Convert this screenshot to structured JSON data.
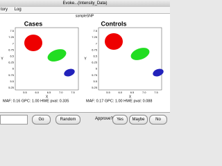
{
  "window": {
    "title": "Evoke...(Intensity_Data)"
  },
  "menu": [
    "tory",
    "Log"
  ],
  "snp_title": "sampleSNP",
  "panels": [
    {
      "title": "Cases",
      "yticks": [
        "7.5",
        "7.25",
        "7",
        "6.75",
        "6.5",
        "6.25",
        "6",
        "5.75",
        "5.5",
        "5.25"
      ],
      "xticks": [
        "5.5",
        "6.0",
        "6.5",
        "7.0",
        "7.5"
      ],
      "xlabel": "X",
      "ylabel": "Y",
      "stats": "MAF: 0.16 GPC: 1.00 HWE pval: 0.335"
    },
    {
      "title": "Controls",
      "yticks": [
        "7.5",
        "7.25",
        "7",
        "6.75",
        "6.5",
        "6.25",
        "6",
        "5.75",
        "5.5",
        "5.25"
      ],
      "xticks": [
        "5.5",
        "6.0",
        "6.5",
        "7.0",
        "7.5"
      ],
      "xlabel": "X",
      "ylabel": "Y",
      "stats": "MAF: 0.17 GPC: 1.00 HWE pval: 0.088"
    }
  ],
  "buttons": {
    "go": "Go",
    "random": "Random",
    "approve": "Approve?",
    "yes": "Yes",
    "maybe": "Maybe",
    "no": "No"
  }
}
